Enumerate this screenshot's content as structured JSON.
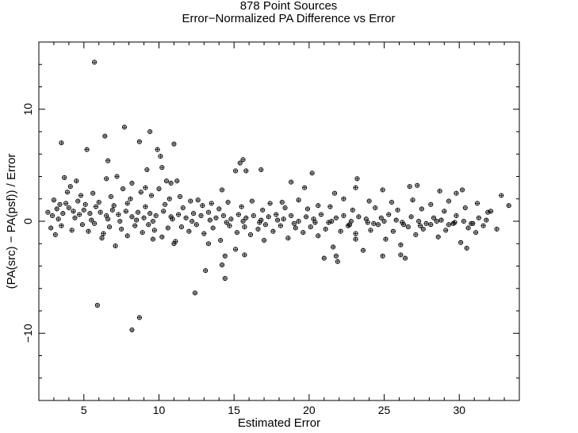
{
  "chart_data": {
    "type": "scatter",
    "title": "878 Point Sources",
    "subtitle": "Error−Normalized PA Difference vs Error",
    "xlabel": "Estimated Error",
    "ylabel": "(PA(src) − PA(psf)) / Error",
    "xlim": [
      2.0,
      34.0
    ],
    "ylim": [
      -16.0,
      16.0
    ],
    "x_ticks": [
      5,
      10,
      15,
      20,
      25,
      30
    ],
    "y_ticks": [
      -10,
      0,
      10
    ],
    "x_tick_labels": [
      "5",
      "10",
      "15",
      "20",
      "25",
      "30"
    ],
    "y_tick_labels": [
      "−10",
      "0",
      "10"
    ],
    "grid": false,
    "legend": "none",
    "marker": "open-circle-with-cross",
    "color": "#000000",
    "series": [
      {
        "points": [
          [
            5.7,
            14.2
          ],
          [
            3.5,
            7.0
          ],
          [
            5.2,
            6.4
          ],
          [
            6.4,
            7.6
          ],
          [
            7.7,
            8.4
          ],
          [
            8.7,
            7.1
          ],
          [
            9.4,
            8.0
          ],
          [
            9.9,
            6.4
          ],
          [
            11.0,
            6.9
          ],
          [
            10.1,
            5.8
          ],
          [
            6.6,
            5.4
          ],
          [
            9.2,
            4.6
          ],
          [
            15.4,
            5.2
          ],
          [
            15.6,
            5.5
          ],
          [
            15.1,
            4.5
          ],
          [
            15.8,
            4.5
          ],
          [
            16.8,
            4.6
          ],
          [
            10.2,
            4.8
          ],
          [
            7.2,
            4.0
          ],
          [
            3.7,
            3.9
          ],
          [
            4.5,
            3.6
          ],
          [
            6.5,
            3.8
          ],
          [
            10.5,
            3.6
          ],
          [
            10.8,
            3.4
          ],
          [
            11.2,
            3.6
          ],
          [
            8.2,
            3.4
          ],
          [
            9.1,
            3.0
          ],
          [
            10.0,
            2.9
          ],
          [
            14.2,
            2.8
          ],
          [
            18.8,
            3.5
          ],
          [
            19.7,
            3.0
          ],
          [
            20.2,
            4.3
          ],
          [
            21.7,
            2.5
          ],
          [
            23.1,
            3.0
          ],
          [
            23.2,
            3.8
          ],
          [
            24.9,
            2.8
          ],
          [
            26.7,
            3.1
          ],
          [
            27.2,
            3.2
          ],
          [
            28.7,
            2.7
          ],
          [
            29.8,
            2.5
          ],
          [
            30.2,
            2.8
          ],
          [
            32.8,
            2.3
          ],
          [
            5.9,
            -7.5
          ],
          [
            8.2,
            -9.7
          ],
          [
            8.7,
            -8.6
          ],
          [
            12.4,
            -6.4
          ],
          [
            14.4,
            -5.1
          ],
          [
            13.1,
            -4.4
          ],
          [
            14.2,
            -3.9
          ],
          [
            15.7,
            -3.0
          ],
          [
            14.4,
            -3.1
          ],
          [
            15.1,
            -2.5
          ],
          [
            21.0,
            -3.3
          ],
          [
            21.8,
            -3.1
          ],
          [
            21.9,
            -3.6
          ],
          [
            24.9,
            -3.1
          ],
          [
            26.1,
            -3.0
          ],
          [
            26.4,
            -3.3
          ],
          [
            30.5,
            -2.4
          ],
          [
            13.3,
            -2.0
          ],
          [
            11.1,
            -1.8
          ],
          [
            6.2,
            -1.5
          ],
          [
            9.6,
            -1.6
          ],
          [
            17.0,
            -1.7
          ],
          [
            23.1,
            -1.6
          ],
          [
            4.1,
            3.1
          ],
          [
            3.0,
            1.9
          ],
          [
            3.4,
            1.5
          ],
          [
            3.9,
            2.6
          ],
          [
            4.8,
            2.3
          ],
          [
            5.6,
            2.5
          ],
          [
            6.8,
            2.2
          ],
          [
            7.6,
            2.9
          ],
          [
            8.1,
            2.0
          ],
          [
            8.8,
            2.6
          ],
          [
            9.5,
            2.3
          ],
          [
            10.7,
            2.0
          ],
          [
            11.4,
            2.2
          ],
          [
            12.1,
            1.8
          ],
          [
            12.6,
            1.9
          ],
          [
            13.5,
            1.6
          ],
          [
            14.6,
            1.7
          ],
          [
            16.2,
            1.8
          ],
          [
            17.4,
            1.6
          ],
          [
            18.2,
            1.7
          ],
          [
            19.3,
            1.9
          ],
          [
            20.6,
            1.4
          ],
          [
            22.3,
            2.0
          ],
          [
            24.0,
            1.8
          ],
          [
            25.5,
            1.7
          ],
          [
            26.9,
            1.9
          ],
          [
            28.1,
            1.5
          ],
          [
            29.3,
            1.8
          ],
          [
            31.2,
            1.6
          ],
          [
            33.3,
            1.4
          ],
          [
            32.1,
            0.9
          ],
          [
            2.6,
            0.8
          ],
          [
            2.9,
            0.5
          ],
          [
            3.2,
            1.1
          ],
          [
            3.6,
            0.7
          ],
          [
            4.0,
            1.2
          ],
          [
            4.3,
            0.9
          ],
          [
            4.7,
            0.6
          ],
          [
            5.0,
            1.0
          ],
          [
            5.4,
            0.7
          ],
          [
            5.8,
            1.3
          ],
          [
            6.1,
            0.8
          ],
          [
            6.5,
            0.5
          ],
          [
            6.9,
            1.0
          ],
          [
            7.3,
            0.6
          ],
          [
            7.8,
            0.9
          ],
          [
            8.2,
            0.4
          ],
          [
            8.6,
            0.8
          ],
          [
            9.0,
            0.3
          ],
          [
            9.4,
            0.7
          ],
          [
            9.8,
            0.5
          ],
          [
            10.3,
            0.9
          ],
          [
            10.8,
            0.4
          ],
          [
            11.3,
            0.6
          ],
          [
            11.8,
            0.3
          ],
          [
            12.3,
            0.7
          ],
          [
            12.8,
            0.5
          ],
          [
            13.3,
            0.8
          ],
          [
            13.8,
            0.3
          ],
          [
            14.3,
            0.5
          ],
          [
            14.8,
            0.2
          ],
          [
            15.3,
            0.6
          ],
          [
            15.8,
            0.3
          ],
          [
            16.3,
            0.5
          ],
          [
            16.8,
            0.1
          ],
          [
            17.3,
            0.4
          ],
          [
            17.8,
            0.6
          ],
          [
            18.3,
            0.2
          ],
          [
            18.8,
            0.5
          ],
          [
            19.3,
            0.0
          ],
          [
            19.8,
            0.4
          ],
          [
            20.3,
            0.2
          ],
          [
            20.8,
            0.6
          ],
          [
            21.3,
            -0.1
          ],
          [
            21.8,
            0.3
          ],
          [
            22.3,
            0.5
          ],
          [
            22.8,
            0.0
          ],
          [
            23.3,
            0.4
          ],
          [
            23.8,
            0.2
          ],
          [
            24.3,
            -0.2
          ],
          [
            24.8,
            0.3
          ],
          [
            25.3,
            0.6
          ],
          [
            25.8,
            0.1
          ],
          [
            26.3,
            -0.3
          ],
          [
            26.8,
            0.4
          ],
          [
            27.3,
            0.0
          ],
          [
            27.8,
            -0.2
          ],
          [
            28.3,
            0.3
          ],
          [
            28.8,
            0.1
          ],
          [
            29.3,
            -0.3
          ],
          [
            29.8,
            0.5
          ],
          [
            30.3,
            0.0
          ],
          [
            30.8,
            -0.2
          ],
          [
            31.3,
            0.3
          ],
          [
            31.8,
            0.1
          ],
          [
            2.8,
            -0.6
          ],
          [
            3.1,
            -1.2
          ],
          [
            3.5,
            -0.4
          ],
          [
            4.2,
            -0.8
          ],
          [
            4.9,
            -0.3
          ],
          [
            5.3,
            -0.9
          ],
          [
            5.7,
            -0.2
          ],
          [
            6.3,
            -1.1
          ],
          [
            6.7,
            -0.5
          ],
          [
            7.1,
            -2.2
          ],
          [
            7.5,
            -0.7
          ],
          [
            7.9,
            -1.3
          ],
          [
            8.4,
            -0.4
          ],
          [
            8.9,
            -1.0
          ],
          [
            9.3,
            -0.3
          ],
          [
            9.7,
            -0.8
          ],
          [
            10.2,
            -1.4
          ],
          [
            10.6,
            -0.6
          ],
          [
            11.0,
            -2.0
          ],
          [
            11.5,
            -0.5
          ],
          [
            12.0,
            -0.9
          ],
          [
            12.5,
            -0.3
          ],
          [
            13.0,
            -1.1
          ],
          [
            13.6,
            -0.6
          ],
          [
            14.1,
            -1.7
          ],
          [
            14.7,
            -0.4
          ],
          [
            15.2,
            -1.0
          ],
          [
            15.7,
            -0.5
          ],
          [
            16.1,
            -1.2
          ],
          [
            16.6,
            -0.7
          ],
          [
            17.1,
            -0.3
          ],
          [
            17.6,
            -0.9
          ],
          [
            18.1,
            -0.4
          ],
          [
            18.6,
            -1.5
          ],
          [
            19.1,
            -0.6
          ],
          [
            19.6,
            -1.0
          ],
          [
            20.1,
            -0.5
          ],
          [
            20.6,
            -1.3
          ],
          [
            21.1,
            -0.7
          ],
          [
            21.6,
            -2.3
          ],
          [
            22.1,
            -0.9
          ],
          [
            22.6,
            -0.4
          ],
          [
            23.1,
            -1.1
          ],
          [
            23.6,
            -2.6
          ],
          [
            24.1,
            -0.8
          ],
          [
            24.6,
            -0.3
          ],
          [
            25.1,
            -1.6
          ],
          [
            25.6,
            -0.9
          ],
          [
            26.1,
            -2.1
          ],
          [
            26.6,
            -0.5
          ],
          [
            27.1,
            -1.2
          ],
          [
            27.6,
            -0.7
          ],
          [
            28.1,
            -0.3
          ],
          [
            28.6,
            -1.4
          ],
          [
            29.1,
            -0.8
          ],
          [
            29.6,
            -0.2
          ],
          [
            30.1,
            -1.9
          ],
          [
            30.6,
            -0.6
          ],
          [
            31.1,
            -1.0
          ],
          [
            31.6,
            -0.4
          ],
          [
            32.5,
            -0.7
          ],
          [
            3.3,
            0.2
          ],
          [
            4.4,
            0.3
          ],
          [
            5.5,
            0.1
          ],
          [
            6.6,
            0.2
          ],
          [
            7.4,
            0.0
          ],
          [
            8.5,
            0.1
          ],
          [
            9.6,
            0.0
          ],
          [
            10.9,
            0.2
          ],
          [
            12.2,
            0.0
          ],
          [
            13.4,
            0.1
          ],
          [
            14.5,
            -0.1
          ],
          [
            15.6,
            0.0
          ],
          [
            16.7,
            -0.1
          ],
          [
            17.9,
            0.1
          ],
          [
            19.0,
            -0.2
          ],
          [
            20.4,
            -0.1
          ],
          [
            21.5,
            0.0
          ],
          [
            22.7,
            -0.3
          ],
          [
            23.9,
            -0.1
          ],
          [
            25.0,
            0.0
          ],
          [
            26.2,
            -0.1
          ],
          [
            27.4,
            -0.4
          ],
          [
            28.5,
            0.0
          ],
          [
            29.7,
            -0.1
          ],
          [
            30.9,
            -0.2
          ],
          [
            3.8,
            1.6
          ],
          [
            4.6,
            1.8
          ],
          [
            5.1,
            1.5
          ],
          [
            6.0,
            1.7
          ],
          [
            7.0,
            1.4
          ],
          [
            7.9,
            1.6
          ],
          [
            9.1,
            1.3
          ],
          [
            10.4,
            1.5
          ],
          [
            11.6,
            1.2
          ],
          [
            12.9,
            1.4
          ],
          [
            14.0,
            1.1
          ],
          [
            15.5,
            1.3
          ],
          [
            16.9,
            1.0
          ],
          [
            18.4,
            1.2
          ],
          [
            19.9,
            1.1
          ],
          [
            21.4,
            1.3
          ],
          [
            22.9,
            1.0
          ],
          [
            24.4,
            1.2
          ],
          [
            25.9,
            1.0
          ],
          [
            27.5,
            1.1
          ],
          [
            29.0,
            0.9
          ],
          [
            30.4,
            1.2
          ],
          [
            31.9,
            0.8
          ]
        ]
      }
    ]
  }
}
